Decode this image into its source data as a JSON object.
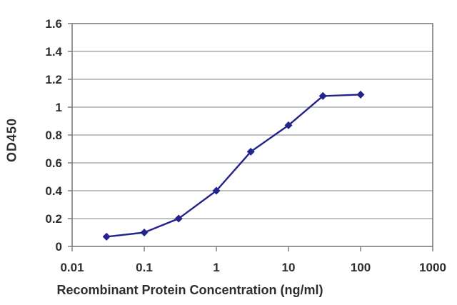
{
  "chart_data": {
    "type": "line",
    "title": "",
    "xlabel": "Recombinant Protein Concentration (ng/ml)",
    "ylabel": "OD450",
    "x_scale": "log",
    "x": [
      0.03,
      0.1,
      0.3,
      1,
      3,
      10,
      30,
      100
    ],
    "values": [
      0.07,
      0.1,
      0.2,
      0.4,
      0.68,
      0.87,
      1.08,
      1.09
    ],
    "xlim": [
      0.01,
      1000
    ],
    "ylim": [
      0,
      1.6
    ],
    "x_ticks": [
      "0.01",
      "0.1",
      "1",
      "10",
      "100",
      "1000"
    ],
    "x_tick_values": [
      0.01,
      0.1,
      1,
      10,
      100,
      1000
    ],
    "y_ticks": [
      "0",
      "0.2",
      "0.4",
      "0.6",
      "0.8",
      "1",
      "1.2",
      "1.4",
      "1.6"
    ],
    "y_tick_values": [
      0,
      0.2,
      0.4,
      0.6,
      0.8,
      1,
      1.2,
      1.4,
      1.6
    ],
    "grid": true,
    "legend": false,
    "marker": "diamond",
    "series_color": "#23238c",
    "gridline_color": "#9c9c9c",
    "axis_color": "#7d7d7d",
    "text_color": "#2e2e2e"
  }
}
